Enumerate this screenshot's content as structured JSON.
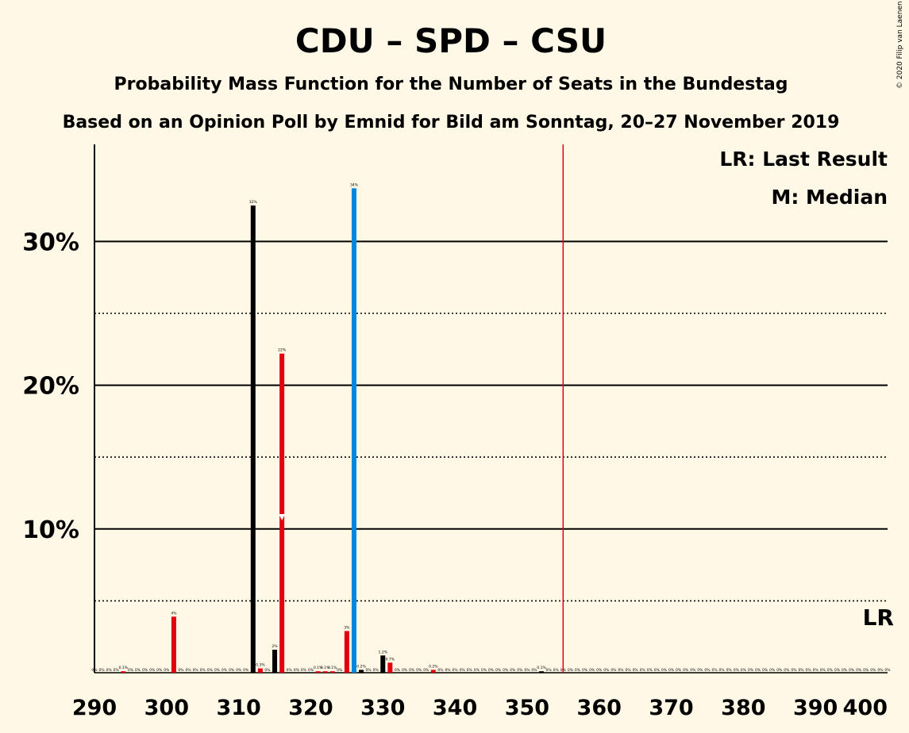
{
  "title": "CDU – SPD – CSU",
  "subtitle1": "Probability Mass Function for the Number of Seats in the Bundestag",
  "subtitle2": "Based on an Opinion Poll by Emnid for Bild am Sonntag, 20–27 November 2019",
  "copyright": "© 2020 Filip van Laenen",
  "legend": {
    "last_result": "LR: Last Result",
    "median": "M: Median",
    "lr_marker": "LR",
    "median_marker": "M"
  },
  "colors": {
    "background": "#FFF8E6",
    "black": "#000000",
    "red": "#E3000F",
    "blue": "#0087DC",
    "majority_line": "#E3000F"
  },
  "chart_data": {
    "type": "bar",
    "xlim": [
      290,
      400
    ],
    "ylim": [
      0,
      36.5
    ],
    "x_ticks": [
      290,
      300,
      310,
      320,
      330,
      340,
      350,
      360,
      370,
      380,
      390,
      400
    ],
    "x_tick_labels": [
      "290",
      "300",
      "310",
      "320",
      "330",
      "340",
      "350",
      "360",
      "370",
      "380",
      "390",
      "400"
    ],
    "y_ticks_major": [
      10,
      20,
      30
    ],
    "y_tick_labels": [
      "10%",
      "20%",
      "30%"
    ],
    "y_ticks_minor": [
      5,
      15,
      25
    ],
    "majority_line_x": 355,
    "median_seat": 316,
    "last_result_seat": 399,
    "bars": [
      {
        "x": 294,
        "value": 0.1,
        "label": "0.1%",
        "color": "red"
      },
      {
        "x": 301,
        "value": 3.9,
        "label": "4%",
        "color": "red"
      },
      {
        "x": 312,
        "value": 32.5,
        "label": "32%",
        "color": "black"
      },
      {
        "x": 313,
        "value": 0.3,
        "label": "0.3%",
        "color": "red"
      },
      {
        "x": 315,
        "value": 1.6,
        "label": "2%",
        "color": "black"
      },
      {
        "x": 316,
        "value": 22.2,
        "label": "22%",
        "color": "red"
      },
      {
        "x": 321,
        "value": 0.1,
        "label": "0.1%",
        "color": "red"
      },
      {
        "x": 322,
        "value": 0.1,
        "label": "0.1%",
        "color": "red"
      },
      {
        "x": 323,
        "value": 0.1,
        "label": "0.1%",
        "color": "red"
      },
      {
        "x": 325,
        "value": 2.9,
        "label": "3%",
        "color": "red"
      },
      {
        "x": 326,
        "value": 33.7,
        "label": "34%",
        "color": "blue"
      },
      {
        "x": 327,
        "value": 0.2,
        "label": "0.2%",
        "color": "black"
      },
      {
        "x": 330,
        "value": 1.2,
        "label": "1.2%",
        "color": "black"
      },
      {
        "x": 331,
        "value": 0.7,
        "label": "0.7%",
        "color": "red"
      },
      {
        "x": 337,
        "value": 0.2,
        "label": "0.2%",
        "color": "red"
      },
      {
        "x": 352,
        "value": 0.1,
        "label": "0.1%",
        "color": "black"
      }
    ]
  }
}
